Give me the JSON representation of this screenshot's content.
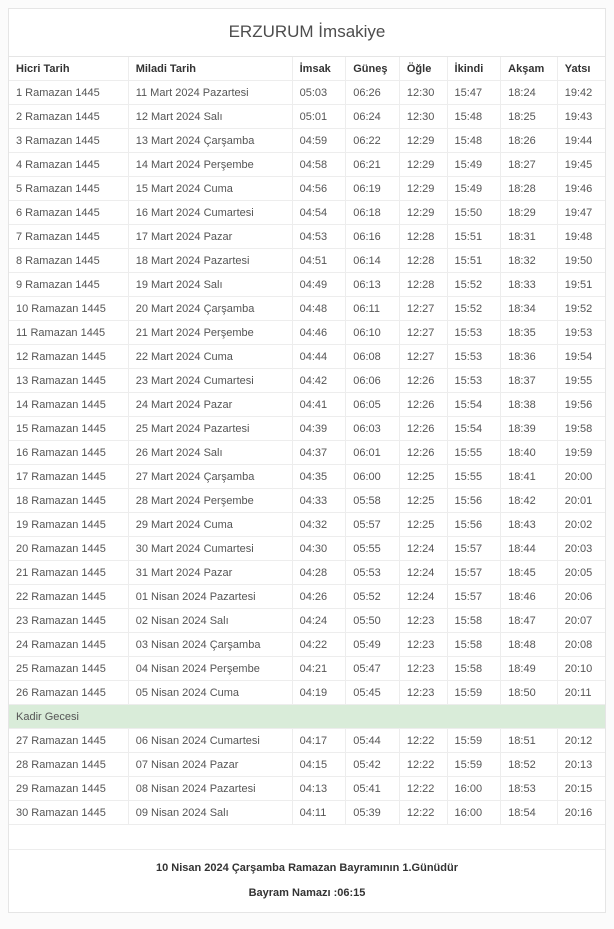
{
  "header": {
    "title": "ERZURUM İmsakiye"
  },
  "table": {
    "columns": [
      "Hicri Tarih",
      "Miladi Tarih",
      "İmsak",
      "Güneş",
      "Öğle",
      "İkindi",
      "Akşam",
      "Yatsı"
    ],
    "rows": [
      [
        "1 Ramazan 1445",
        "11 Mart 2024 Pazartesi",
        "05:03",
        "06:26",
        "12:30",
        "15:47",
        "18:24",
        "19:42"
      ],
      [
        "2 Ramazan 1445",
        "12 Mart 2024 Salı",
        "05:01",
        "06:24",
        "12:30",
        "15:48",
        "18:25",
        "19:43"
      ],
      [
        "3 Ramazan 1445",
        "13 Mart 2024 Çarşamba",
        "04:59",
        "06:22",
        "12:29",
        "15:48",
        "18:26",
        "19:44"
      ],
      [
        "4 Ramazan 1445",
        "14 Mart 2024 Perşembe",
        "04:58",
        "06:21",
        "12:29",
        "15:49",
        "18:27",
        "19:45"
      ],
      [
        "5 Ramazan 1445",
        "15 Mart 2024 Cuma",
        "04:56",
        "06:19",
        "12:29",
        "15:49",
        "18:28",
        "19:46"
      ],
      [
        "6 Ramazan 1445",
        "16 Mart 2024 Cumartesi",
        "04:54",
        "06:18",
        "12:29",
        "15:50",
        "18:29",
        "19:47"
      ],
      [
        "7 Ramazan 1445",
        "17 Mart 2024 Pazar",
        "04:53",
        "06:16",
        "12:28",
        "15:51",
        "18:31",
        "19:48"
      ],
      [
        "8 Ramazan 1445",
        "18 Mart 2024 Pazartesi",
        "04:51",
        "06:14",
        "12:28",
        "15:51",
        "18:32",
        "19:50"
      ],
      [
        "9 Ramazan 1445",
        "19 Mart 2024 Salı",
        "04:49",
        "06:13",
        "12:28",
        "15:52",
        "18:33",
        "19:51"
      ],
      [
        "10 Ramazan 1445",
        "20 Mart 2024 Çarşamba",
        "04:48",
        "06:11",
        "12:27",
        "15:52",
        "18:34",
        "19:52"
      ],
      [
        "11 Ramazan 1445",
        "21 Mart 2024 Perşembe",
        "04:46",
        "06:10",
        "12:27",
        "15:53",
        "18:35",
        "19:53"
      ],
      [
        "12 Ramazan 1445",
        "22 Mart 2024 Cuma",
        "04:44",
        "06:08",
        "12:27",
        "15:53",
        "18:36",
        "19:54"
      ],
      [
        "13 Ramazan 1445",
        "23 Mart 2024 Cumartesi",
        "04:42",
        "06:06",
        "12:26",
        "15:53",
        "18:37",
        "19:55"
      ],
      [
        "14 Ramazan 1445",
        "24 Mart 2024 Pazar",
        "04:41",
        "06:05",
        "12:26",
        "15:54",
        "18:38",
        "19:56"
      ],
      [
        "15 Ramazan 1445",
        "25 Mart 2024 Pazartesi",
        "04:39",
        "06:03",
        "12:26",
        "15:54",
        "18:39",
        "19:58"
      ],
      [
        "16 Ramazan 1445",
        "26 Mart 2024 Salı",
        "04:37",
        "06:01",
        "12:26",
        "15:55",
        "18:40",
        "19:59"
      ],
      [
        "17 Ramazan 1445",
        "27 Mart 2024 Çarşamba",
        "04:35",
        "06:00",
        "12:25",
        "15:55",
        "18:41",
        "20:00"
      ],
      [
        "18 Ramazan 1445",
        "28 Mart 2024 Perşembe",
        "04:33",
        "05:58",
        "12:25",
        "15:56",
        "18:42",
        "20:01"
      ],
      [
        "19 Ramazan 1445",
        "29 Mart 2024 Cuma",
        "04:32",
        "05:57",
        "12:25",
        "15:56",
        "18:43",
        "20:02"
      ],
      [
        "20 Ramazan 1445",
        "30 Mart 2024 Cumartesi",
        "04:30",
        "05:55",
        "12:24",
        "15:57",
        "18:44",
        "20:03"
      ],
      [
        "21 Ramazan 1445",
        "31 Mart 2024 Pazar",
        "04:28",
        "05:53",
        "12:24",
        "15:57",
        "18:45",
        "20:05"
      ],
      [
        "22 Ramazan 1445",
        "01 Nisan 2024 Pazartesi",
        "04:26",
        "05:52",
        "12:24",
        "15:57",
        "18:46",
        "20:06"
      ],
      [
        "23 Ramazan 1445",
        "02 Nisan 2024 Salı",
        "04:24",
        "05:50",
        "12:23",
        "15:58",
        "18:47",
        "20:07"
      ],
      [
        "24 Ramazan 1445",
        "03 Nisan 2024 Çarşamba",
        "04:22",
        "05:49",
        "12:23",
        "15:58",
        "18:48",
        "20:08"
      ],
      [
        "25 Ramazan 1445",
        "04 Nisan 2024 Perşembe",
        "04:21",
        "05:47",
        "12:23",
        "15:58",
        "18:49",
        "20:10"
      ],
      [
        "26 Ramazan 1445",
        "05 Nisan 2024 Cuma",
        "04:19",
        "05:45",
        "12:23",
        "15:59",
        "18:50",
        "20:11"
      ],
      [
        "27 Ramazan 1445",
        "06 Nisan 2024 Cumartesi",
        "04:17",
        "05:44",
        "12:22",
        "15:59",
        "18:51",
        "20:12"
      ],
      [
        "28 Ramazan 1445",
        "07 Nisan 2024 Pazar",
        "04:15",
        "05:42",
        "12:22",
        "15:59",
        "18:52",
        "20:13"
      ],
      [
        "29 Ramazan 1445",
        "08 Nisan 2024 Pazartesi",
        "04:13",
        "05:41",
        "12:22",
        "16:00",
        "18:53",
        "20:15"
      ],
      [
        "30 Ramazan 1445",
        "09 Nisan 2024 Salı",
        "04:11",
        "05:39",
        "12:22",
        "16:00",
        "18:54",
        "20:16"
      ]
    ],
    "special_row": {
      "label": "Kadir Gecesi",
      "insert_after_row": 26,
      "bg_color": "#d9ecd9"
    }
  },
  "footer": {
    "bayram_note": "10 Nisan 2024 Çarşamba Ramazan Bayramının 1.Günüdür",
    "bayram_namazi": "Bayram Namazı :06:15"
  },
  "colors": {
    "special_row_bg": "#d9ecd9",
    "border": "#e5e5e5",
    "text": "#555555",
    "heading_text": "#333333"
  }
}
